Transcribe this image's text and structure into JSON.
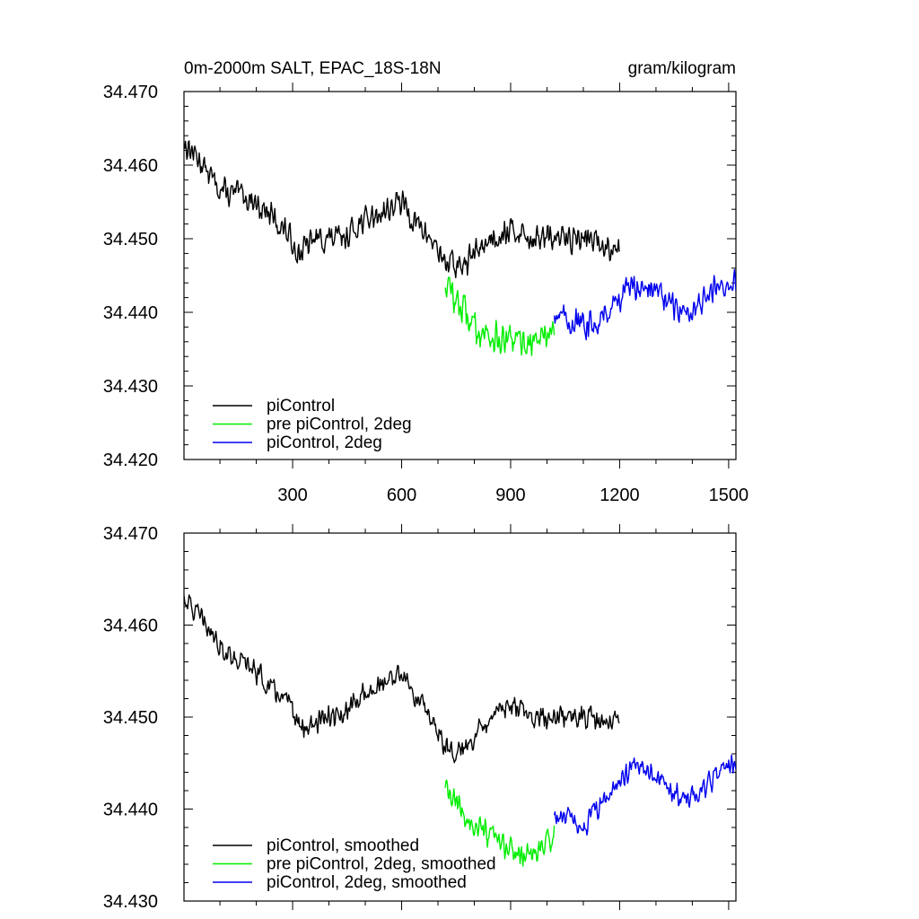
{
  "chart_data": [
    {
      "type": "line",
      "title": "0m-2000m SALT, EPAC_18S-18N",
      "units": "gram/kilogram",
      "xlabel": "",
      "ylabel": "",
      "xlim": [
        1,
        1520
      ],
      "ylim": [
        34.42,
        34.47
      ],
      "xticks": [
        300,
        600,
        900,
        1200,
        1500
      ],
      "xtick_labels": [
        "300",
        "600",
        "900",
        "1200",
        "1500"
      ],
      "yticks": [
        34.42,
        34.43,
        34.44,
        34.45,
        34.46,
        34.47
      ],
      "ytick_labels": [
        "34.420",
        "34.430",
        "34.440",
        "34.450",
        "34.460",
        "34.470"
      ],
      "legend_position": "bottom-left",
      "series": [
        {
          "name": "piControl",
          "color": "#000000",
          "x": [
            1,
            40,
            80,
            120,
            160,
            200,
            240,
            280,
            320,
            360,
            400,
            440,
            480,
            520,
            560,
            600,
            640,
            680,
            720,
            760,
            800,
            840,
            880,
            920,
            960,
            1000,
            1040,
            1080,
            1120,
            1160,
            1200
          ],
          "y": [
            34.463,
            34.461,
            34.458,
            34.456,
            34.456,
            34.455,
            34.453,
            34.451,
            34.448,
            34.45,
            34.45,
            34.45,
            34.452,
            34.453,
            34.454,
            34.455,
            34.452,
            34.45,
            34.447,
            34.446,
            34.448,
            34.45,
            34.451,
            34.451,
            34.45,
            34.45,
            34.45,
            34.45,
            34.45,
            34.449,
            34.449
          ],
          "noise": 0.0022
        },
        {
          "name": "pre piControl, 2deg",
          "color": "#00ee00",
          "x": [
            720,
            760,
            800,
            840,
            880,
            920,
            960,
            1000,
            1020
          ],
          "y": [
            34.444,
            34.441,
            34.438,
            34.437,
            34.436,
            34.436,
            34.436,
            34.437,
            34.438
          ],
          "noise": 0.0026
        },
        {
          "name": "piControl, 2deg",
          "color": "#0000ee",
          "x": [
            1020,
            1060,
            1100,
            1140,
            1180,
            1220,
            1260,
            1300,
            1340,
            1380,
            1420,
            1460,
            1500,
            1520
          ],
          "y": [
            34.44,
            34.439,
            34.438,
            34.439,
            34.441,
            34.443,
            34.444,
            34.443,
            34.441,
            34.44,
            34.441,
            34.443,
            34.444,
            34.444
          ],
          "noise": 0.0022
        }
      ]
    },
    {
      "type": "line",
      "title": "",
      "xlabel": "",
      "ylabel": "",
      "xlim": [
        1,
        1520
      ],
      "ylim": [
        34.43,
        34.47
      ],
      "xticks": [
        300,
        600,
        900,
        1200,
        1500
      ],
      "yticks": [
        34.43,
        34.44,
        34.45,
        34.46,
        34.47
      ],
      "ytick_labels": [
        "34.430",
        "34.440",
        "34.450",
        "34.460",
        "34.470"
      ],
      "legend_position": "bottom-left",
      "series": [
        {
          "name": "piControl, smoothed",
          "color": "#000000",
          "x": [
            1,
            40,
            80,
            120,
            160,
            200,
            240,
            280,
            320,
            360,
            400,
            440,
            480,
            520,
            560,
            600,
            640,
            680,
            720,
            760,
            800,
            840,
            880,
            920,
            960,
            1000,
            1040,
            1080,
            1120,
            1160,
            1200
          ],
          "y": [
            34.463,
            34.461,
            34.459,
            34.457,
            34.456,
            34.455,
            34.453,
            34.452,
            34.449,
            34.449,
            34.45,
            34.45,
            34.452,
            34.453,
            34.454,
            34.455,
            34.452,
            34.45,
            34.447,
            34.446,
            34.448,
            34.45,
            34.451,
            34.451,
            34.45,
            34.45,
            34.45,
            34.45,
            34.45,
            34.449,
            34.45
          ],
          "noise": 0.0015
        },
        {
          "name": "pre piControl, 2deg, smoothed",
          "color": "#00ee00",
          "x": [
            720,
            760,
            800,
            840,
            880,
            920,
            960,
            1000,
            1020
          ],
          "y": [
            34.442,
            34.44,
            34.438,
            34.437,
            34.436,
            34.435,
            34.435,
            34.436,
            34.438
          ],
          "noise": 0.0017
        },
        {
          "name": "piControl, 2deg, smoothed",
          "color": "#0000ee",
          "x": [
            1020,
            1060,
            1100,
            1140,
            1180,
            1220,
            1260,
            1300,
            1340,
            1380,
            1420,
            1460,
            1500,
            1520
          ],
          "y": [
            34.439,
            34.439,
            34.438,
            34.44,
            34.442,
            34.444,
            34.445,
            34.444,
            34.442,
            34.441,
            34.442,
            34.443,
            34.445,
            34.445
          ],
          "noise": 0.0015
        }
      ]
    }
  ]
}
